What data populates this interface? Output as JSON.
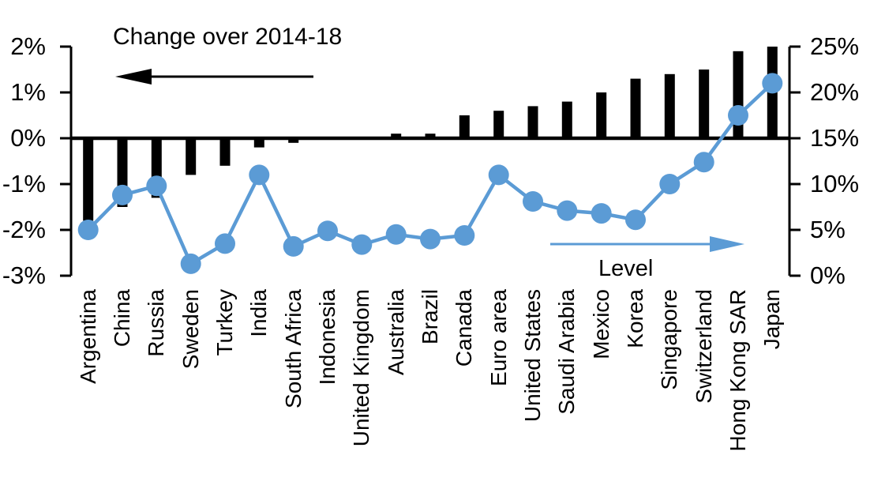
{
  "chart_data": {
    "type": "bar",
    "subtype": "dual-axis bar + line",
    "title": "Change over 2014-18",
    "line_label": "Level",
    "grid": false,
    "legend_position": "none",
    "colors": {
      "bar": "#000000",
      "line": "#5b9bd5",
      "axis": "#000000",
      "background": "#ffffff"
    },
    "left_axis": {
      "side": "left",
      "series": "Change over 2014-18",
      "tick_labels": [
        "2%",
        "1%",
        "0%",
        "-1%",
        "-2%",
        "-3%"
      ],
      "tick_values": [
        2,
        1,
        0,
        -1,
        -2,
        -3
      ],
      "min": -3,
      "max": 2
    },
    "right_axis": {
      "side": "right",
      "series": "Level",
      "tick_labels": [
        "25%",
        "20%",
        "15%",
        "10%",
        "5%",
        "0%"
      ],
      "tick_values": [
        25,
        20,
        15,
        10,
        5,
        0
      ],
      "min": 0,
      "max": 25
    },
    "categories": [
      "Argentina",
      "China",
      "Russia",
      "Sweden",
      "Turkey",
      "India",
      "South Africa",
      "Indonesia",
      "United Kingdom",
      "Australia",
      "Brazil",
      "Canada",
      "Euro area",
      "United States",
      "Saudi Arabia",
      "Mexico",
      "Korea",
      "Singapore",
      "Switzerland",
      "Hong Kong SAR",
      "Japan"
    ],
    "series": [
      {
        "name": "Change over 2014-18",
        "type": "bar",
        "axis": "left",
        "color": "#000000",
        "values": [
          -1.8,
          -1.5,
          -1.3,
          -0.8,
          -0.6,
          -0.2,
          -0.1,
          0,
          0,
          0.1,
          0.1,
          0.5,
          0.6,
          0.7,
          0.8,
          1.0,
          1.3,
          1.4,
          1.5,
          1.9,
          2.0
        ]
      },
      {
        "name": "Level",
        "type": "line",
        "axis": "right",
        "color": "#5b9bd5",
        "values": [
          5.0,
          8.8,
          9.8,
          1.3,
          3.5,
          11.0,
          3.2,
          4.9,
          3.4,
          4.5,
          4.0,
          4.4,
          11.0,
          8.1,
          7.1,
          6.8,
          6.1,
          10.0,
          12.4,
          17.5,
          21.0
        ]
      }
    ],
    "annotations": [
      {
        "text": "Change over 2014-18",
        "arrow_direction": "left",
        "color": "#000000"
      },
      {
        "text": "Level",
        "arrow_direction": "right",
        "color": "#5b9bd5"
      }
    ]
  }
}
